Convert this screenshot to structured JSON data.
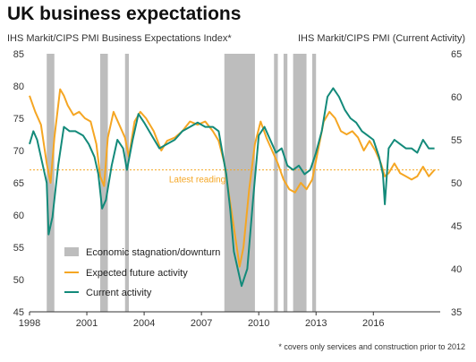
{
  "chart_data": {
    "type": "line",
    "title": "UK business expectations",
    "ylabel_left": "IHS Markit/CIPS PMI Business Expectations Index*",
    "ylabel_right": "IHS Markit/CIPS PMI (Current Activity)",
    "footnote": "* covers only services and construction prior to 2012",
    "x_ticks": [
      "1998",
      "2001",
      "2004",
      "2007",
      "2010",
      "2013",
      "2016"
    ],
    "x_tick_values": [
      1998,
      2001,
      2004,
      2007,
      2010,
      2013,
      2016
    ],
    "xlim": [
      1998,
      2019.5
    ],
    "ylim_left": [
      45,
      85
    ],
    "yticks_left": [
      45,
      50,
      55,
      60,
      65,
      70,
      75,
      80,
      85
    ],
    "ylim_right": [
      35,
      65
    ],
    "yticks_right": [
      35,
      40,
      45,
      50,
      55,
      60,
      65
    ],
    "reference_line": {
      "label": "Latest reading",
      "value": 67,
      "axis": "left",
      "color": "#f5a623"
    },
    "shaded_periods": {
      "name": "Economic stagnation/downturn",
      "color": "#bdbdbd",
      "ranges": [
        [
          1998.9,
          1999.3
        ],
        [
          2001.7,
          2002.1
        ],
        [
          2003.0,
          2003.2
        ],
        [
          2008.2,
          2009.8
        ],
        [
          2010.8,
          2011.0
        ],
        [
          2011.3,
          2011.5
        ],
        [
          2011.8,
          2012.5
        ],
        [
          2012.8,
          2013.0
        ]
      ]
    },
    "series": [
      {
        "name": "Expected future activity",
        "axis": "left",
        "color": "#f5a623",
        "x": [
          1998.0,
          1998.3,
          1998.6,
          1998.9,
          1999.1,
          1999.3,
          1999.6,
          1999.8,
          2000.0,
          2000.3,
          2000.6,
          2000.9,
          2001.2,
          2001.5,
          2001.7,
          2001.9,
          2002.1,
          2002.4,
          2002.7,
          2003.0,
          2003.2,
          2003.5,
          2003.8,
          2004.1,
          2004.5,
          2004.9,
          2005.2,
          2005.6,
          2006.0,
          2006.4,
          2006.8,
          2007.2,
          2007.6,
          2007.9,
          2008.2,
          2008.5,
          2008.8,
          2009.0,
          2009.2,
          2009.5,
          2009.8,
          2010.1,
          2010.4,
          2010.7,
          2011.0,
          2011.3,
          2011.6,
          2011.9,
          2012.2,
          2012.5,
          2012.8,
          2013.1,
          2013.4,
          2013.7,
          2014.0,
          2014.3,
          2014.6,
          2014.9,
          2015.2,
          2015.5,
          2015.8,
          2016.1,
          2016.4,
          2016.6,
          2016.8,
          2017.1,
          2017.4,
          2017.7,
          2018.0,
          2018.3,
          2018.6,
          2018.9,
          2019.2
        ],
        "values": [
          78.5,
          76.0,
          74.0,
          68.0,
          65.0,
          72.0,
          79.5,
          78.5,
          77.0,
          75.5,
          76.0,
          75.0,
          74.5,
          71.0,
          66.0,
          64.5,
          72.0,
          76.0,
          74.0,
          72.0,
          69.0,
          74.5,
          76.0,
          75.0,
          73.0,
          70.0,
          71.5,
          72.0,
          73.0,
          74.5,
          74.0,
          74.5,
          73.0,
          71.5,
          68.0,
          62.0,
          56.0,
          52.0,
          55.0,
          64.0,
          71.0,
          74.5,
          72.0,
          70.0,
          68.0,
          65.5,
          64.0,
          63.5,
          65.0,
          64.0,
          65.5,
          70.0,
          74.5,
          76.0,
          75.0,
          73.0,
          72.5,
          73.0,
          72.0,
          70.0,
          71.5,
          70.0,
          68.0,
          66.0,
          66.5,
          68.0,
          66.5,
          66.0,
          65.5,
          66.0,
          67.5,
          66.0,
          67.0
        ]
      },
      {
        "name": "Current activity",
        "axis": "right",
        "color": "#138a7a",
        "x": [
          1998.0,
          1998.2,
          1998.4,
          1998.7,
          1998.9,
          1999.0,
          1999.2,
          1999.5,
          1999.8,
          2000.1,
          2000.4,
          2000.8,
          2001.1,
          2001.4,
          2001.6,
          2001.8,
          2002.0,
          2002.3,
          2002.6,
          2002.9,
          2003.1,
          2003.4,
          2003.7,
          2004.0,
          2004.4,
          2004.8,
          2005.2,
          2005.6,
          2006.0,
          2006.4,
          2006.8,
          2007.2,
          2007.6,
          2007.9,
          2008.1,
          2008.3,
          2008.5,
          2008.7,
          2008.9,
          2009.1,
          2009.4,
          2009.7,
          2010.0,
          2010.3,
          2010.6,
          2010.9,
          2011.2,
          2011.5,
          2011.8,
          2012.1,
          2012.4,
          2012.7,
          2013.0,
          2013.3,
          2013.6,
          2013.9,
          2014.2,
          2014.5,
          2014.8,
          2015.1,
          2015.4,
          2015.7,
          2016.0,
          2016.3,
          2016.5,
          2016.6,
          2016.8,
          2017.1,
          2017.4,
          2017.7,
          2018.0,
          2018.3,
          2018.6,
          2018.9,
          2019.2
        ],
        "values": [
          54.5,
          56.0,
          55.0,
          52.0,
          50.0,
          44.0,
          46.0,
          52.0,
          56.5,
          56.0,
          56.0,
          55.5,
          54.5,
          53.0,
          51.0,
          47.0,
          48.0,
          52.0,
          55.0,
          54.0,
          51.5,
          55.0,
          58.0,
          57.0,
          55.5,
          54.0,
          54.5,
          55.0,
          56.0,
          56.5,
          57.0,
          56.5,
          56.5,
          56.0,
          53.5,
          51.0,
          47.0,
          42.0,
          40.0,
          38.0,
          40.0,
          48.0,
          55.5,
          56.5,
          55.0,
          53.5,
          54.0,
          52.0,
          51.5,
          52.0,
          51.0,
          51.5,
          53.5,
          56.0,
          60.0,
          61.0,
          60.0,
          58.5,
          57.5,
          57.0,
          56.0,
          55.5,
          55.0,
          53.0,
          51.0,
          47.5,
          54.0,
          55.0,
          54.5,
          54.0,
          54.0,
          53.5,
          55.0,
          54.0,
          54.0
        ]
      }
    ]
  }
}
